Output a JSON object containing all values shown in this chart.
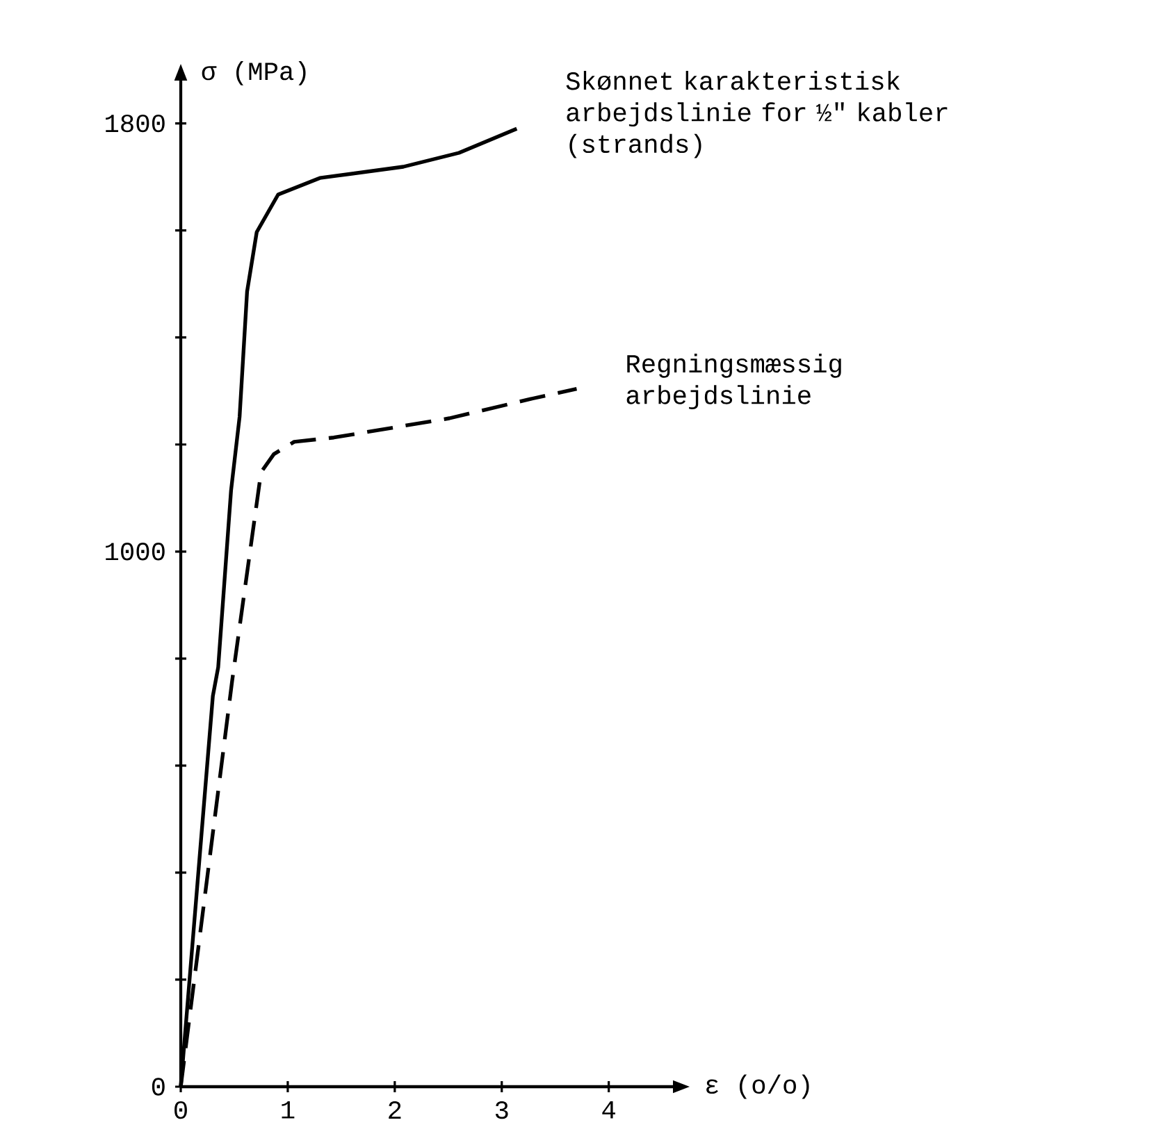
{
  "chart_data": {
    "type": "line",
    "xlabel": "ε (o/o)",
    "ylabel": "σ (MPa)",
    "xlim": [
      0,
      4.6
    ],
    "ylim": [
      0,
      1880
    ],
    "xticks": [
      0,
      1,
      2,
      3,
      4
    ],
    "yticks": [
      0,
      {
        "value": 200,
        "label": null
      },
      {
        "value": 400,
        "label": null
      },
      {
        "value": 600,
        "label": null
      },
      {
        "value": 800,
        "label": null
      },
      1000,
      {
        "value": 1200,
        "label": null
      },
      {
        "value": 1400,
        "label": null
      },
      {
        "value": 1600,
        "label": null
      },
      1800
    ],
    "series": [
      {
        "name": "Skønnet karakteristisk arbejdslinie for ½\" kabler (strands)",
        "color": "#000000",
        "line_style": "solid",
        "x": [
          0,
          0.3,
          0.35,
          0.47,
          0.55,
          0.62,
          0.71,
          0.91,
          1.3,
          2.08,
          2.6,
          3.14
        ],
        "values": [
          0,
          730,
          784,
          1114,
          1252,
          1486,
          1597,
          1667,
          1698,
          1719,
          1745,
          1790
        ]
      },
      {
        "name": "Regningsmæssig arbejdslinie",
        "color": "#000000",
        "line_style": "dashed",
        "x": [
          0,
          0.25,
          0.48,
          0.75,
          0.87,
          1.06,
          1.43,
          1.97,
          2.51,
          3.29,
          3.7
        ],
        "values": [
          0,
          395,
          758,
          1148,
          1182,
          1205,
          1213,
          1231,
          1249,
          1286,
          1304
        ]
      }
    ]
  }
}
